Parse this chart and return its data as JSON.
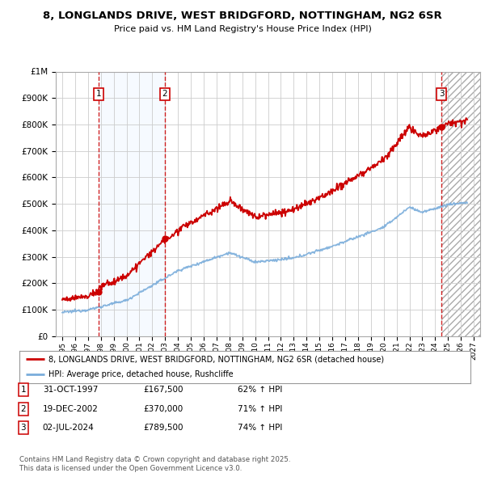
{
  "title_line1": "8, LONGLANDS DRIVE, WEST BRIDGFORD, NOTTINGHAM, NG2 6SR",
  "title_line2": "Price paid vs. HM Land Registry's House Price Index (HPI)",
  "background_color": "#ffffff",
  "grid_color": "#cccccc",
  "sale_dates_num": [
    1997.83,
    2002.97,
    2024.5
  ],
  "sale_prices": [
    167500,
    370000,
    789500
  ],
  "sale_labels": [
    "1",
    "2",
    "3"
  ],
  "legend_line1": "8, LONGLANDS DRIVE, WEST BRIDGFORD, NOTTINGHAM, NG2 6SR (detached house)",
  "legend_line2": "HPI: Average price, detached house, Rushcliffe",
  "table_data": [
    [
      "1",
      "31-OCT-1997",
      "£167,500",
      "62% ↑ HPI"
    ],
    [
      "2",
      "19-DEC-2002",
      "£370,000",
      "71% ↑ HPI"
    ],
    [
      "3",
      "02-JUL-2024",
      "£789,500",
      "74% ↑ HPI"
    ]
  ],
  "footer_line1": "Contains HM Land Registry data © Crown copyright and database right 2025.",
  "footer_line2": "This data is licensed under the Open Government Licence v3.0.",
  "hpi_color": "#7aaddb",
  "price_color": "#cc0000",
  "ylim": [
    0,
    1000000
  ],
  "xlim_start": 1994.5,
  "xlim_end": 2027.5,
  "shaded_color": "#ddeeff",
  "hatch_color": "#cccccc"
}
